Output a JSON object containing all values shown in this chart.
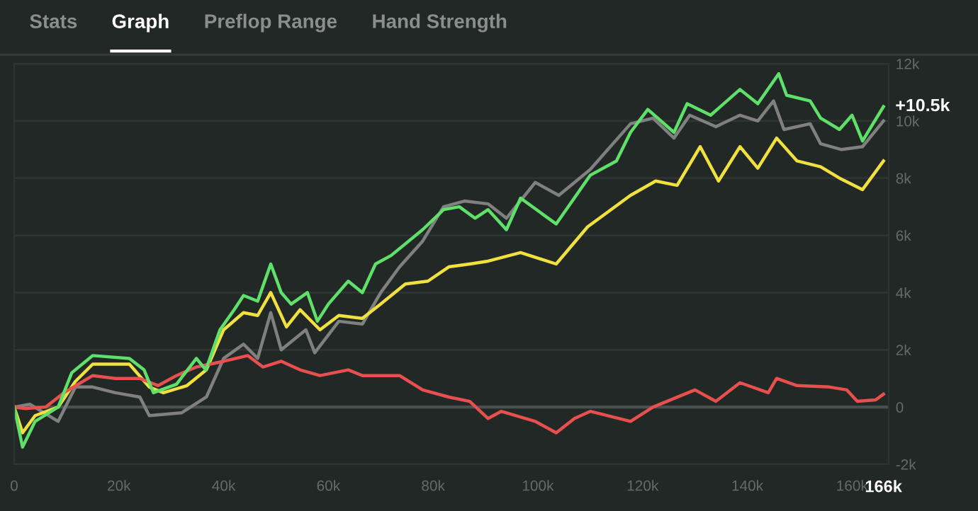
{
  "chart_data": {
    "type": "line",
    "annotations": [
      "Stats",
      "Graph",
      "Preflop Range",
      "Hand Strength",
      {
        "text": "+10.5k",
        "x": 166000,
        "y": 10500
      }
    ],
    "series": [
      {
        "color": "#808080",
        "x": [
          0,
          3000,
          8400,
          11700,
          15000,
          19300,
          24000,
          25800,
          32000,
          36700,
          40000,
          43800,
          46500,
          49000,
          51000,
          55700,
          57400,
          62000,
          66500,
          70000,
          73600,
          78000,
          82000,
          86000,
          90500,
          94000,
          99500,
          104000,
          110000,
          117700,
          122000,
          126000,
          129000,
          134000,
          138600,
          142000,
          145000,
          147000,
          152000,
          154000,
          158000,
          162000,
          166000
        ],
        "values": [
          0,
          100,
          -500,
          700,
          700,
          500,
          350,
          -300,
          -200,
          350,
          1700,
          2200,
          1700,
          3300,
          2000,
          2700,
          1900,
          3000,
          2900,
          4000,
          4900,
          5800,
          7000,
          7200,
          7100,
          6600,
          7850,
          7400,
          8300,
          9900,
          10100,
          9400,
          10200,
          9800,
          10200,
          10000,
          10700,
          9700,
          9900,
          9200,
          9000,
          9100,
          10000
        ]
      },
      {
        "color": "#f0e040",
        "x": [
          0,
          1600,
          4000,
          8400,
          11700,
          15000,
          22000,
          25800,
          28500,
          33000,
          36700,
          40000,
          43800,
          46500,
          49000,
          52000,
          54600,
          58400,
          62000,
          66500,
          70000,
          74700,
          79000,
          83000,
          87000,
          90500,
          96700,
          103500,
          109500,
          117700,
          122500,
          126600,
          131000,
          134500,
          138600,
          142000,
          145600,
          149500,
          154000,
          157600,
          162000,
          166000
        ],
        "values": [
          0,
          -900,
          -300,
          0,
          900,
          1500,
          1500,
          700,
          500,
          750,
          1300,
          2700,
          3300,
          3200,
          4000,
          2800,
          3400,
          2700,
          3200,
          3100,
          3600,
          4300,
          4400,
          4900,
          5000,
          5100,
          5400,
          5000,
          6300,
          7400,
          7900,
          7750,
          9100,
          7900,
          9100,
          8350,
          9400,
          8600,
          8400,
          8000,
          7600,
          8600
        ]
      },
      {
        "color": "#e85050",
        "x": [
          0,
          2000,
          6000,
          9500,
          15000,
          19300,
          24000,
          27500,
          31000,
          34800,
          40000,
          44600,
          47500,
          51000,
          54600,
          58400,
          63800,
          66500,
          73600,
          78000,
          83000,
          87000,
          90500,
          93000,
          99500,
          103500,
          107000,
          110000,
          117700,
          122000,
          130000,
          134000,
          138600,
          144000,
          145600,
          149500,
          155700,
          159000,
          161000,
          164500,
          166000
        ],
        "values": [
          0,
          -50,
          0,
          500,
          1100,
          1000,
          1000,
          750,
          1100,
          1400,
          1600,
          1800,
          1400,
          1600,
          1300,
          1100,
          1300,
          1100,
          1100,
          600,
          350,
          200,
          -400,
          -150,
          -500,
          -900,
          -400,
          -150,
          -500,
          0,
          600,
          200,
          850,
          500,
          1000,
          750,
          700,
          600,
          200,
          250,
          450
        ]
      },
      {
        "color": "#5ee06a",
        "x": [
          0,
          1600,
          4000,
          8400,
          11000,
          15000,
          22000,
          24800,
          26600,
          31000,
          34800,
          36600,
          39300,
          42000,
          43800,
          46500,
          49000,
          51000,
          52900,
          56000,
          57900,
          60000,
          63800,
          66500,
          69000,
          72000,
          78000,
          82000,
          85000,
          88000,
          90500,
          94000,
          96700,
          103500,
          110000,
          115000,
          117700,
          121000,
          126000,
          128500,
          133000,
          138600,
          142000,
          146000,
          147500,
          152000,
          154000,
          157600,
          160000,
          162000,
          166000
        ],
        "values": [
          0,
          -1400,
          -500,
          0,
          1200,
          1800,
          1700,
          1300,
          500,
          800,
          1700,
          1300,
          2700,
          3400,
          3900,
          3700,
          5000,
          4000,
          3600,
          4000,
          3000,
          3600,
          4400,
          4000,
          5000,
          5300,
          6200,
          6900,
          7000,
          6600,
          6900,
          6200,
          7300,
          6400,
          8100,
          8600,
          9600,
          10400,
          9600,
          10600,
          10200,
          11100,
          10600,
          11650,
          10900,
          10700,
          10100,
          9700,
          10200,
          9300,
          10500
        ]
      }
    ],
    "xlim": [
      0,
      167000
    ],
    "ylim": [
      -2000,
      12000
    ],
    "xticks": [
      {
        "value": 0,
        "label": "0"
      },
      {
        "value": 20000,
        "label": "20k"
      },
      {
        "value": 40000,
        "label": "40k"
      },
      {
        "value": 60000,
        "label": "60k"
      },
      {
        "value": 80000,
        "label": "80k"
      },
      {
        "value": 100000,
        "label": "100k"
      },
      {
        "value": 120000,
        "label": "120k"
      },
      {
        "value": 140000,
        "label": "140k"
      },
      {
        "value": 160000,
        "label": "160k"
      },
      {
        "value": 166000,
        "label": "166k"
      }
    ],
    "yticks": [
      {
        "value": -2000,
        "label": "-2k"
      },
      {
        "value": 0,
        "label": "0"
      },
      {
        "value": 2000,
        "label": "2k"
      },
      {
        "value": 4000,
        "label": "4k"
      },
      {
        "value": 6000,
        "label": "6k"
      },
      {
        "value": 8000,
        "label": "8k"
      },
      {
        "value": 10000,
        "label": "10k"
      },
      {
        "value": 12000,
        "label": "12k"
      }
    ],
    "ref_lines": [
      {
        "axis": "y",
        "value": 0,
        "color": "#4a504e"
      }
    ],
    "grid": "y",
    "marker": "none",
    "line_style": "solid"
  }
}
